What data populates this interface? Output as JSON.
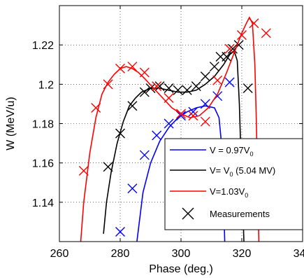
{
  "chart_data": {
    "type": "line",
    "xlabel": "Phase (deg.)",
    "ylabel": "W (MeV/u)",
    "xlim": [
      260,
      340
    ],
    "ylim": [
      1.12,
      1.24
    ],
    "x_ticks": [
      "260",
      "280",
      "300",
      "320",
      "340"
    ],
    "y_ticks": [
      "1.14",
      "1.16",
      "1.18",
      "1.2",
      "1.22"
    ],
    "x_tick_values": [
      260,
      280,
      300,
      320,
      340
    ],
    "y_tick_values": [
      1.14,
      1.16,
      1.18,
      1.2,
      1.22
    ],
    "grid": "dotted",
    "legend_position": "bottom-right",
    "series": [
      {
        "name": "V = 0.97V",
        "name_sub": "0",
        "name_suffix": "",
        "color": "#0000ff",
        "curve": [
          [
            285.5,
            1.12
          ],
          [
            287.5,
            1.145
          ],
          [
            290,
            1.16
          ],
          [
            293,
            1.171
          ],
          [
            296,
            1.178
          ],
          [
            299,
            1.183
          ],
          [
            302,
            1.186
          ],
          [
            305,
            1.188
          ],
          [
            308,
            1.189
          ],
          [
            311,
            1.188
          ],
          [
            312.5,
            1.183
          ],
          [
            313.3,
            1.17
          ],
          [
            313.8,
            1.15
          ],
          [
            314.2,
            1.13
          ],
          [
            314.4,
            1.12
          ]
        ],
        "markers": [
          [
            280,
            1.125
          ],
          [
            284,
            1.147
          ],
          [
            288,
            1.164
          ],
          [
            292,
            1.174
          ],
          [
            296,
            1.18
          ],
          [
            300,
            1.184
          ],
          [
            304,
            1.186
          ],
          [
            308,
            1.19
          ],
          [
            312,
            1.194
          ],
          [
            316,
            1.201
          ]
        ]
      },
      {
        "name": "V= V",
        "name_sub": "0",
        "name_suffix": " (5.04 MV)",
        "color": "#000000",
        "curve": [
          [
            274.5,
            1.124
          ],
          [
            275.5,
            1.14
          ],
          [
            277,
            1.155
          ],
          [
            279,
            1.17
          ],
          [
            281,
            1.181
          ],
          [
            283,
            1.189
          ],
          [
            285,
            1.193
          ],
          [
            287,
            1.196
          ],
          [
            290,
            1.198
          ],
          [
            293,
            1.198
          ],
          [
            296,
            1.197
          ],
          [
            299,
            1.196
          ],
          [
            302,
            1.196
          ],
          [
            305,
            1.197
          ],
          [
            308,
            1.2
          ],
          [
            311,
            1.204
          ],
          [
            314,
            1.21
          ],
          [
            316,
            1.215
          ],
          [
            317.5,
            1.217
          ],
          [
            318.5,
            1.212
          ],
          [
            319.2,
            1.19
          ],
          [
            319.8,
            1.16
          ],
          [
            320.3,
            1.14
          ],
          [
            320.7,
            1.12
          ]
        ],
        "markers": [
          [
            276,
            1.158
          ],
          [
            280,
            1.175
          ],
          [
            284,
            1.189
          ],
          [
            288,
            1.196
          ],
          [
            290,
            1.198
          ],
          [
            293,
            1.199
          ],
          [
            296,
            1.198
          ],
          [
            299,
            1.197
          ],
          [
            302,
            1.197
          ],
          [
            305,
            1.199
          ],
          [
            308,
            1.204
          ],
          [
            311,
            1.209
          ],
          [
            313,
            1.214
          ],
          [
            315,
            1.214
          ],
          [
            317,
            1.218
          ],
          [
            319,
            1.22
          ],
          [
            322,
            1.198
          ]
        ]
      },
      {
        "name": "V=1.03V",
        "name_sub": "0",
        "name_suffix": "",
        "color": "#ff0000",
        "curve": [
          [
            267,
            1.12
          ],
          [
            268,
            1.14
          ],
          [
            270,
            1.165
          ],
          [
            272,
            1.183
          ],
          [
            274,
            1.195
          ],
          [
            276,
            1.201
          ],
          [
            278,
            1.205
          ],
          [
            280,
            1.208
          ],
          [
            282,
            1.209
          ],
          [
            284,
            1.208
          ],
          [
            286,
            1.206
          ],
          [
            288,
            1.203
          ],
          [
            291,
            1.198
          ],
          [
            294,
            1.193
          ],
          [
            297,
            1.188
          ],
          [
            300,
            1.185
          ],
          [
            303,
            1.183
          ],
          [
            306,
            1.184
          ],
          [
            309,
            1.188
          ],
          [
            312,
            1.195
          ],
          [
            315,
            1.206
          ],
          [
            318,
            1.218
          ],
          [
            320,
            1.226
          ],
          [
            321.5,
            1.231
          ],
          [
            322.5,
            1.234
          ],
          [
            323.5,
            1.231
          ],
          [
            324.3,
            1.21
          ],
          [
            324.8,
            1.18
          ],
          [
            325.2,
            1.15
          ],
          [
            325.6,
            1.12
          ]
        ],
        "markers": [
          [
            268,
            1.156
          ],
          [
            272,
            1.188
          ],
          [
            276,
            1.2
          ],
          [
            280,
            1.208
          ],
          [
            284,
            1.209
          ],
          [
            288,
            1.206
          ],
          [
            292,
            1.199
          ],
          [
            296,
            1.193
          ],
          [
            300,
            1.185
          ],
          [
            304,
            1.184
          ],
          [
            308,
            1.181
          ],
          [
            312,
            1.202
          ],
          [
            316,
            1.218
          ],
          [
            320,
            1.225
          ],
          [
            324,
            1.231
          ],
          [
            328,
            1.226
          ]
        ]
      }
    ],
    "legend_marker_label": "Measurements"
  }
}
